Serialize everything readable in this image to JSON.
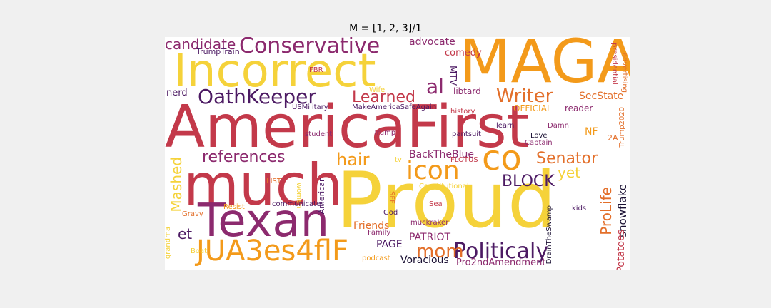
{
  "title": "M = [1, 2, 3]/1",
  "colors": {
    "background": "#f0f0f0",
    "canvas": "#ffffff",
    "palette": [
      "#f5d23a",
      "#f39a1a",
      "#e36f2a",
      "#c3394a",
      "#8c2a6e",
      "#4c1a63",
      "#1a1033"
    ]
  },
  "words": [
    {
      "id": "w1",
      "text": "MAGA",
      "color": "#f39a1a"
    },
    {
      "id": "w2",
      "text": "Incorrect",
      "color": "#f5d23a"
    },
    {
      "id": "w3",
      "text": "AmericaFirst",
      "color": "#c3394a"
    },
    {
      "id": "w4",
      "text": "Proud",
      "color": "#f5d23a"
    },
    {
      "id": "w5",
      "text": "much",
      "color": "#c3394a"
    },
    {
      "id": "w6",
      "text": "Texan",
      "color": "#8c2a6e"
    },
    {
      "id": "w7",
      "text": "JUA3es4flF",
      "color": "#f39a1a"
    },
    {
      "id": "w8",
      "text": "Conservative",
      "color": "#8c2a6e"
    },
    {
      "id": "w9",
      "text": "OathKeeper",
      "color": "#4c1a63"
    },
    {
      "id": "w10",
      "text": "candidate",
      "color": "#8c2a6e"
    },
    {
      "id": "w11",
      "text": "icon",
      "color": "#f39a1a"
    },
    {
      "id": "w12",
      "text": "co",
      "color": "#f39a1a"
    },
    {
      "id": "w13",
      "text": "Politicaly",
      "color": "#4c1a63"
    },
    {
      "id": "w14",
      "text": "Writer",
      "color": "#e36f2a"
    },
    {
      "id": "w15",
      "text": "al",
      "color": "#8c2a6e"
    },
    {
      "id": "w16",
      "text": "Learned",
      "color": "#c3394a"
    },
    {
      "id": "w17",
      "text": "references",
      "color": "#8c2a6e"
    },
    {
      "id": "w18",
      "text": "hair",
      "color": "#f39a1a"
    },
    {
      "id": "w19",
      "text": "Senator",
      "color": "#e36f2a"
    },
    {
      "id": "w20",
      "text": "mom",
      "color": "#e36f2a"
    },
    {
      "id": "w21",
      "text": "BLOCK",
      "color": "#4c1a63"
    },
    {
      "id": "w22",
      "text": "yet",
      "color": "#f5d23a"
    },
    {
      "id": "w23",
      "text": "et",
      "color": "#4c1a63"
    },
    {
      "id": "w24",
      "text": "Mashed",
      "color": "#f5d23a"
    },
    {
      "id": "w25",
      "text": "ProLife",
      "color": "#e36f2a"
    },
    {
      "id": "w26",
      "text": "snowflake",
      "color": "#1a1033"
    },
    {
      "id": "w27",
      "text": "Potatoes",
      "color": "#c3394a"
    },
    {
      "id": "w28",
      "text": "advocate",
      "color": "#8c2a6e"
    },
    {
      "id": "w29",
      "text": "comedy",
      "color": "#c3394a"
    },
    {
      "id": "w30",
      "text": "TrumpTrain",
      "color": "#4c1a63"
    },
    {
      "id": "w31",
      "text": "nerd",
      "color": "#4c1a63"
    },
    {
      "id": "w32",
      "text": "SecState",
      "color": "#e36f2a"
    },
    {
      "id": "w33",
      "text": "OFFICIAL",
      "color": "#f39a1a"
    },
    {
      "id": "w34",
      "text": "reader",
      "color": "#8c2a6e"
    },
    {
      "id": "w35",
      "text": "libtard",
      "color": "#8c2a6e"
    },
    {
      "id": "w36",
      "text": "MTV",
      "color": "#4c1a63"
    },
    {
      "id": "w37",
      "text": "FBR",
      "color": "#c3394a"
    },
    {
      "id": "w38",
      "text": "Wife",
      "color": "#f5d23a"
    },
    {
      "id": "w39",
      "text": "USMilitary",
      "color": "#4c1a63"
    },
    {
      "id": "w40",
      "text": "MakeAmericaSafeAgain",
      "color": "#4c1a63"
    },
    {
      "id": "w41",
      "text": "history",
      "color": "#c3394a"
    },
    {
      "id": "w42",
      "text": "learn",
      "color": "#4c1a63"
    },
    {
      "id": "w43",
      "text": "Damn",
      "color": "#8c2a6e"
    },
    {
      "id": "w44",
      "text": "Love",
      "color": "#1a1033"
    },
    {
      "id": "w45",
      "text": "Captain",
      "color": "#8c2a6e"
    },
    {
      "id": "w46",
      "text": "NF",
      "color": "#f39a1a"
    },
    {
      "id": "w47",
      "text": "2A",
      "color": "#e36f2a"
    },
    {
      "id": "w48",
      "text": "Trump2020",
      "color": "#e36f2a"
    },
    {
      "id": "w49",
      "text": "presidential",
      "color": "#c3394a"
    },
    {
      "id": "w50",
      "text": "advertising",
      "color": "#e36f2a"
    },
    {
      "id": "w51",
      "text": "student",
      "color": "#8c2a6e"
    },
    {
      "id": "w52",
      "text": "Trump",
      "color": "#8c2a6e"
    },
    {
      "id": "w53",
      "text": "pantsuit",
      "color": "#4c1a63"
    },
    {
      "id": "w54",
      "text": "BackTheBlue",
      "color": "#8c2a6e"
    },
    {
      "id": "w55",
      "text": "FLOTUS",
      "color": "#c3394a"
    },
    {
      "id": "w56",
      "text": "tv",
      "color": "#f5d23a"
    },
    {
      "id": "w57",
      "text": "Constitutional",
      "color": "#f5d23a"
    },
    {
      "id": "w58",
      "text": "LIST",
      "color": "#e36f2a"
    },
    {
      "id": "w59",
      "text": "women",
      "color": "#f5d23a"
    },
    {
      "id": "w60",
      "text": "American",
      "color": "#4c1a63"
    },
    {
      "id": "w61",
      "text": "SFF",
      "color": "#e36f2a"
    },
    {
      "id": "w62",
      "text": "Sea",
      "color": "#c3394a"
    },
    {
      "id": "w63",
      "text": "God",
      "color": "#4c1a63"
    },
    {
      "id": "w64",
      "text": "Resist",
      "color": "#f39a1a"
    },
    {
      "id": "w65",
      "text": "communicates",
      "color": "#4c1a63"
    },
    {
      "id": "w66",
      "text": "Gravy",
      "color": "#e36f2a"
    },
    {
      "id": "w67",
      "text": "grandma",
      "color": "#f5d23a"
    },
    {
      "id": "w68",
      "text": "Boat",
      "color": "#f5d23a"
    },
    {
      "id": "w69",
      "text": "Friends",
      "color": "#e36f2a"
    },
    {
      "id": "w70",
      "text": "Family",
      "color": "#8c2a6e"
    },
    {
      "id": "w71",
      "text": "podcast",
      "color": "#f39a1a"
    },
    {
      "id": "w72",
      "text": "PAGE",
      "color": "#4c1a63"
    },
    {
      "id": "w73",
      "text": "muckraker",
      "color": "#8c2a6e"
    },
    {
      "id": "w74",
      "text": "PATRIOT",
      "color": "#8c2a6e"
    },
    {
      "id": "w75",
      "text": "Voracious",
      "color": "#1a1033"
    },
    {
      "id": "w76",
      "text": "Pro2ndAmendment",
      "color": "#8c2a6e"
    },
    {
      "id": "w77",
      "text": "DrainTheSwamp",
      "color": "#1a1033"
    },
    {
      "id": "w78",
      "text": "kids",
      "color": "#4c1a63"
    }
  ]
}
